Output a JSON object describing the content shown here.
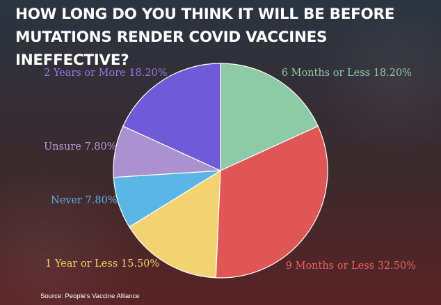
{
  "chart_data": {
    "type": "pie",
    "title": "HOW LONG DO YOU THINK IT WILL BE BEFORE\nMUTATIONS RENDER COVID VACCINES INEFFECTIVE?",
    "slices": [
      {
        "label": "6 Months or Less",
        "value": 18.2,
        "display": "18.20%",
        "color": "#8ec9a8",
        "text_color": "#8ec9a8"
      },
      {
        "label": "9 Months or Less",
        "value": 32.5,
        "display": "32.50%",
        "color": "#e05656",
        "text_color": "#e8645c"
      },
      {
        "label": "1 Year or Less",
        "value": 15.5,
        "display": "15.50%",
        "color": "#f3d271",
        "text_color": "#f0cf6a"
      },
      {
        "label": "Never",
        "value": 7.8,
        "display": "7.80%",
        "color": "#5bb6e6",
        "text_color": "#5bb6e6"
      },
      {
        "label": "Unsure",
        "value": 7.8,
        "display": "7.80%",
        "color": "#a992cf",
        "text_color": "#b39ad9"
      },
      {
        "label": "2 Years or More",
        "value": 18.2,
        "display": "18.20%",
        "color": "#6f5ad8",
        "text_color": "#8f7be6"
      }
    ],
    "source": "Source: People's Vaccine Alliance"
  }
}
